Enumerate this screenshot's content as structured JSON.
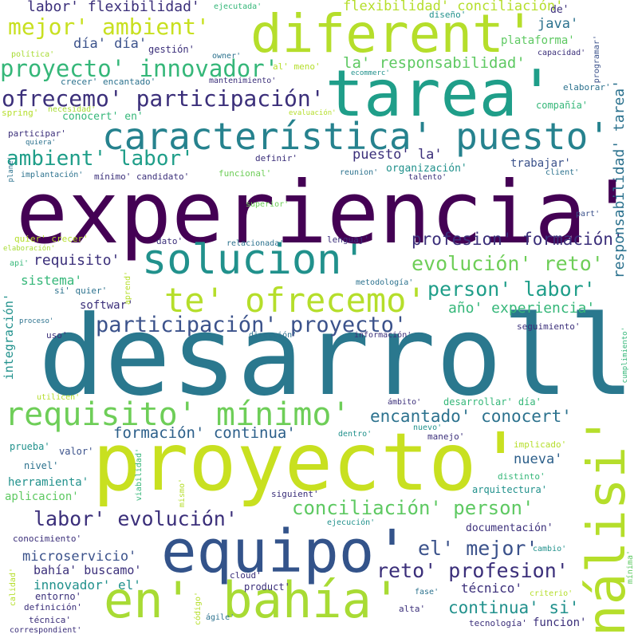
{
  "palette": {
    "dark_purple": "#440154",
    "indigo": "#3b2f7a",
    "slate_blue": "#31688e",
    "teal_blue": "#26828e",
    "teal": "#1f9e89",
    "green": "#35b779",
    "light_green": "#6ece58",
    "yellow_green": "#b5de2b",
    "yellow": "#c8e020"
  },
  "words": [
    {
      "text": "experiencia'",
      "color": "#440154"
    },
    {
      "text": "desarrollo'",
      "color": "#2a788e"
    },
    {
      "text": "proyecto'",
      "color": "#c8e020"
    },
    {
      "text": "tarea'",
      "color": "#1f9e89"
    },
    {
      "text": "diferent'",
      "color": "#b5de2b"
    },
    {
      "text": "equipo'",
      "color": "#33538a"
    },
    {
      "text": "en' bahía'",
      "color": "#a8db34"
    },
    {
      "text": "análisi'",
      "color": "#b5de2b"
    },
    {
      "text": "solucion'",
      "color": "#21918c"
    },
    {
      "text": "característica' puesto'",
      "color": "#26828e"
    },
    {
      "text": "te' ofrecemo'",
      "color": "#b5de2b"
    },
    {
      "text": "requisito' mínimo'",
      "color": "#6ece58"
    },
    {
      "text": "participación' proyecto'",
      "color": "#3b528b"
    },
    {
      "text": "proyecto' innovador'",
      "color": "#35b779"
    },
    {
      "text": "ofrecemo' participación'",
      "color": "#3b2f7a"
    },
    {
      "text": "mejor' ambient'",
      "color": "#c8e020"
    },
    {
      "text": "ambient' labor'",
      "color": "#1f9e89"
    },
    {
      "text": "person' labor'",
      "color": "#1f9e89"
    },
    {
      "text": "evolución' reto'",
      "color": "#6ece58"
    },
    {
      "text": "conciliación' person'",
      "color": "#5ec962"
    },
    {
      "text": "labor' evolución'",
      "color": "#3b2f7a"
    },
    {
      "text": "reto' profesion'",
      "color": "#3b2f7a"
    },
    {
      "text": "el' mejor'",
      "color": "#3b528b"
    },
    {
      "text": "encantado' conocert'",
      "color": "#2c728e"
    },
    {
      "text": "formación' continua'",
      "color": "#2c5f8a"
    },
    {
      "text": "profesion' formación'",
      "color": "#3b2f7a"
    },
    {
      "text": "continua' si'",
      "color": "#21918c"
    },
    {
      "text": "la' responsabilidad'",
      "color": "#5ec962"
    },
    {
      "text": "responsabilidad' tarea'",
      "color": "#2c728e"
    },
    {
      "text": "labor' flexibilidad'",
      "color": "#3b2f7a"
    },
    {
      "text": "flexibilidad' conciliación'",
      "color": "#b5de2b"
    },
    {
      "text": "año' experiencia'",
      "color": "#35b779"
    },
    {
      "text": "requisito'",
      "color": "#3b2f7a"
    },
    {
      "text": "día' día'",
      "color": "#3b528b"
    },
    {
      "text": "puesto' la'",
      "color": "#3b2f7a"
    },
    {
      "text": "nueva'",
      "color": "#2c5f8a"
    },
    {
      "text": "microservicio'",
      "color": "#3b528b"
    },
    {
      "text": "java'",
      "color": "#2c728e"
    },
    {
      "text": "sistema'",
      "color": "#35b779"
    },
    {
      "text": "innovador' el'",
      "color": "#21918c"
    },
    {
      "text": "técnico'",
      "color": "#3b2f7a"
    },
    {
      "text": "bahía' buscamo'",
      "color": "#3b2f7a"
    },
    {
      "text": "integración'",
      "color": "#21918c"
    },
    {
      "text": "plataforma'",
      "color": "#5ec962"
    },
    {
      "text": "softwar'",
      "color": "#3b2f7a"
    },
    {
      "text": "trabajar'",
      "color": "#3b528b"
    },
    {
      "text": "organización'",
      "color": "#21918c"
    },
    {
      "text": "herramienta'",
      "color": "#21918c"
    },
    {
      "text": "aplicacion'",
      "color": "#5ec962"
    },
    {
      "text": "funcion'",
      "color": "#3b2f7a"
    },
    {
      "text": "documentación'",
      "color": "#3b2f7a"
    },
    {
      "text": "conocert' en'",
      "color": "#35b779"
    },
    {
      "text": "ejecutada'",
      "color": "#35b779"
    },
    {
      "text": "gestión'",
      "color": "#3b2f7a"
    },
    {
      "text": "diseño'",
      "color": "#21918c"
    },
    {
      "text": "de'",
      "color": "#3b2f7a"
    },
    {
      "text": "compañía'",
      "color": "#35b779"
    },
    {
      "text": "capacidad'",
      "color": "#3b2f7a"
    },
    {
      "text": "programar'",
      "color": "#3b528b"
    },
    {
      "text": "elaborar'",
      "color": "#2c728e"
    },
    {
      "text": "política'",
      "color": "#a8db34"
    },
    {
      "text": "owner'",
      "color": "#2c728e"
    },
    {
      "text": "al' meno'",
      "color": "#b5de2b"
    },
    {
      "text": "ecommerc'",
      "color": "#21918c"
    },
    {
      "text": "crecer' encantado'",
      "color": "#2c728e"
    },
    {
      "text": "mantenimiento'",
      "color": "#3b2f7a"
    },
    {
      "text": "spring'",
      "color": "#b5de2b"
    },
    {
      "text": "necesidad'",
      "color": "#a8db34"
    },
    {
      "text": "evaluación'",
      "color": "#b5de2b"
    },
    {
      "text": "participar'",
      "color": "#3b2f7a"
    },
    {
      "text": "quiera'",
      "color": "#2c728e"
    },
    {
      "text": "definir'",
      "color": "#3b2f7a"
    },
    {
      "text": "implantación'",
      "color": "#2c728e"
    },
    {
      "text": "mínimo' candidato'",
      "color": "#3b2f7a"
    },
    {
      "text": "funcional'",
      "color": "#6ece58"
    },
    {
      "text": "reunion'",
      "color": "#2c728e"
    },
    {
      "text": "talento'",
      "color": "#3b2f7a"
    },
    {
      "text": "client'",
      "color": "#2c728e"
    },
    {
      "text": "plane'",
      "color": "#2c728e"
    },
    {
      "text": "superior'",
      "color": "#6ece58"
    },
    {
      "text": "part'",
      "color": "#3b528b"
    },
    {
      "text": "quier' crecer'",
      "color": "#b5de2b"
    },
    {
      "text": "elaboración'",
      "color": "#a8db34"
    },
    {
      "text": "api'",
      "color": "#35b779"
    },
    {
      "text": "dato'",
      "color": "#3b2f7a"
    },
    {
      "text": "relacionada'",
      "color": "#2c728e"
    },
    {
      "text": "lenguaj'",
      "color": "#3b2f7a"
    },
    {
      "text": "si' quier'",
      "color": "#2c728e"
    },
    {
      "text": "aprend'",
      "color": "#b5de2b"
    },
    {
      "text": "metodología'",
      "color": "#2c728e"
    },
    {
      "text": "proceso'",
      "color": "#2c728e"
    },
    {
      "text": "uso'",
      "color": "#3b2f7a"
    },
    {
      "text": "dirección'",
      "color": "#2c728e"
    },
    {
      "text": "información'",
      "color": "#3b2f7a"
    },
    {
      "text": "seguimiento'",
      "color": "#3b2f7a"
    },
    {
      "text": "cumplimiento'",
      "color": "#35b779"
    },
    {
      "text": "utilicen'",
      "color": "#b5de2b"
    },
    {
      "text": "ámbito'",
      "color": "#3b2f7a"
    },
    {
      "text": "desarrollar' día'",
      "color": "#35b779"
    },
    {
      "text": "prueba'",
      "color": "#21918c"
    },
    {
      "text": "valor'",
      "color": "#3b528b"
    },
    {
      "text": "viabilidad'",
      "color": "#35b779"
    },
    {
      "text": "dentro'",
      "color": "#21918c"
    },
    {
      "text": "nuevo'",
      "color": "#21918c"
    },
    {
      "text": "manejo'",
      "color": "#3b2f7a"
    },
    {
      "text": "implicado'",
      "color": "#b5de2b"
    },
    {
      "text": "nivel'",
      "color": "#2c728e"
    },
    {
      "text": "distinto'",
      "color": "#35b779"
    },
    {
      "text": "arquitectura'",
      "color": "#21918c"
    },
    {
      "text": "siguient'",
      "color": "#3b2f7a"
    },
    {
      "text": "mismo'",
      "color": "#b5de2b"
    },
    {
      "text": "ejecución'",
      "color": "#21918c"
    },
    {
      "text": "conocimiento'",
      "color": "#3b2f7a"
    },
    {
      "text": "cambio'",
      "color": "#21918c"
    },
    {
      "text": "calidad'",
      "color": "#b5de2b"
    },
    {
      "text": "entorno'",
      "color": "#3b2f7a"
    },
    {
      "text": "código'",
      "color": "#b5de2b"
    },
    {
      "text": "cloud'",
      "color": "#3b2f7a"
    },
    {
      "text": "product'",
      "color": "#3b2f7a"
    },
    {
      "text": "fase'",
      "color": "#2c728e"
    },
    {
      "text": "criterio'",
      "color": "#b5de2b"
    },
    {
      "text": "mínima'",
      "color": "#5ec962"
    },
    {
      "text": "definición'",
      "color": "#3b2f7a"
    },
    {
      "text": "alta'",
      "color": "#3b2f7a"
    },
    {
      "text": "técnica'",
      "color": "#3b2f7a"
    },
    {
      "text": "ágile'",
      "color": "#2c728e"
    },
    {
      "text": "tecnología'",
      "color": "#3b2f7a"
    },
    {
      "text": "correspondient'",
      "color": "#3b2f7a"
    }
  ]
}
